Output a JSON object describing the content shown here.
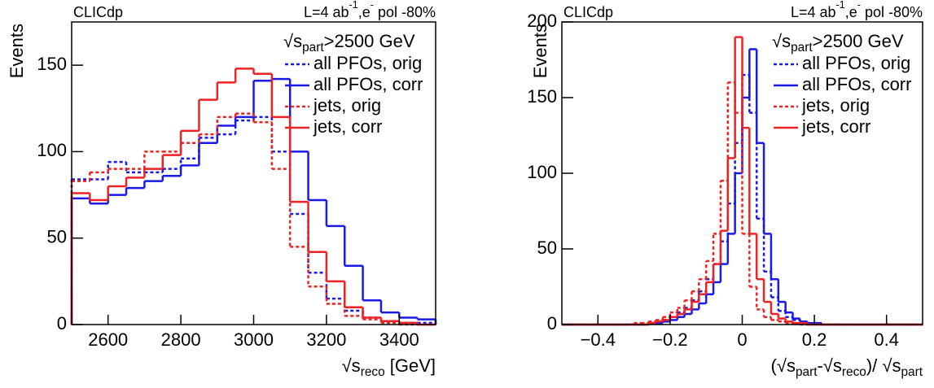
{
  "chart_data": [
    {
      "type": "histogram",
      "top_left_text": "CLICdp",
      "top_right_text": {
        "parts": [
          "L=4 ab",
          "-1",
          ",e",
          "-",
          " pol -80%"
        ],
        "script": "super"
      },
      "legend_title": {
        "parts": [
          "√s",
          "part",
          ">2500 GeV"
        ],
        "script": "sub"
      },
      "x_label": {
        "parts": [
          "√s",
          "reco",
          " [GeV]"
        ],
        "script": "sub"
      },
      "y_label": "Events",
      "legend": "top-right",
      "xlim": [
        2500,
        3500
      ],
      "xticks": [
        2600,
        2800,
        3000,
        3200,
        3400
      ],
      "ylim": [
        0,
        175
      ],
      "yticks": [
        0,
        50,
        100,
        150
      ],
      "bins": [
        2500,
        2550,
        2600,
        2650,
        2700,
        2750,
        2800,
        2850,
        2900,
        2950,
        3000,
        3050,
        3100,
        3150,
        3200,
        3250,
        3300,
        3350,
        3400,
        3450,
        3500
      ],
      "series": [
        {
          "name": "all PFOs, orig",
          "color": "#1a1ae6",
          "style": "dashed",
          "values": [
            84,
            84,
            94,
            88,
            88,
            90,
            96,
            108,
            110,
            118,
            120,
            100,
            64,
            30,
            15,
            8,
            4,
            2,
            1,
            1
          ]
        },
        {
          "name": "all PFOs, corr",
          "color": "#1a1ae6",
          "style": "solid",
          "values": [
            73,
            70,
            75,
            79,
            83,
            86,
            92,
            105,
            115,
            120,
            141,
            142,
            100,
            72,
            57,
            34,
            14,
            7,
            4,
            3
          ]
        },
        {
          "name": "jets, orig",
          "color": "#ee2222",
          "style": "dashed",
          "values": [
            83,
            88,
            90,
            90,
            100,
            100,
            105,
            110,
            120,
            122,
            117,
            90,
            45,
            22,
            12,
            5,
            3,
            1,
            0,
            0
          ]
        },
        {
          "name": "jets, corr",
          "color": "#ee2222",
          "style": "solid",
          "values": [
            76,
            72,
            80,
            85,
            90,
            98,
            112,
            130,
            140,
            148,
            145,
            120,
            71,
            42,
            25,
            10,
            4,
            2,
            1,
            0
          ]
        }
      ]
    },
    {
      "type": "histogram",
      "top_left_text": "CLICdp",
      "top_right_text": {
        "parts": [
          "L=4 ab",
          "-1",
          ",e",
          "-",
          " pol -80%"
        ],
        "script": "super"
      },
      "legend_title": {
        "parts": [
          "√s",
          "part",
          ">2500 GeV"
        ],
        "script": "sub"
      },
      "x_label": {
        "parts": [
          "(√s",
          "part",
          "-√s",
          "reco",
          ")/ √s",
          "part"
        ],
        "script": "sub"
      },
      "y_label": "Events",
      "legend": "top-right",
      "xlim": [
        -0.5,
        0.5
      ],
      "xticks": [
        {
          "value": -0.4,
          "label": "−0.4"
        },
        {
          "value": -0.2,
          "label": "−0.2"
        },
        0,
        0.2,
        0.4
      ],
      "ylim": [
        0,
        200
      ],
      "yticks": [
        0,
        50,
        100,
        150,
        200
      ],
      "bins": [
        -0.5,
        -0.48,
        -0.46,
        -0.44,
        -0.42,
        -0.4,
        -0.38,
        -0.36,
        -0.34,
        -0.32,
        -0.3,
        -0.28,
        -0.26,
        -0.24,
        -0.22,
        -0.2,
        -0.18,
        -0.16,
        -0.14,
        -0.12,
        -0.1,
        -0.08,
        -0.06,
        -0.04,
        -0.02,
        0,
        0.02,
        0.04,
        0.06,
        0.08,
        0.1,
        0.12,
        0.14,
        0.16,
        0.18,
        0.2,
        0.22,
        0.24,
        0.26,
        0.28,
        0.3,
        0.32,
        0.34,
        0.36,
        0.38,
        0.4,
        0.42,
        0.44,
        0.46,
        0.48,
        0.5
      ],
      "series": [
        {
          "name": "all PFOs, orig",
          "color": "#1a1ae6",
          "style": "dashed",
          "values": [
            0,
            0,
            0,
            0,
            0,
            0,
            0,
            0,
            0,
            0,
            0,
            0,
            1,
            2,
            3,
            5,
            8,
            11,
            16,
            22,
            30,
            40,
            55,
            80,
            120,
            165,
            140,
            70,
            35,
            18,
            9,
            5,
            3,
            2,
            1,
            1,
            0,
            0,
            0,
            0,
            0,
            0,
            0,
            0,
            0,
            0,
            0,
            0,
            0,
            0
          ]
        },
        {
          "name": "all PFOs, corr",
          "color": "#1a1ae6",
          "style": "solid",
          "values": [
            0,
            0,
            0,
            0,
            0,
            0,
            0,
            0,
            0,
            0,
            0,
            0,
            1,
            1,
            2,
            3,
            5,
            7,
            10,
            14,
            20,
            28,
            40,
            60,
            100,
            150,
            182,
            120,
            60,
            30,
            15,
            8,
            4,
            2,
            1,
            1,
            0,
            0,
            0,
            0,
            0,
            0,
            0,
            0,
            0,
            0,
            0,
            0,
            0,
            0
          ]
        },
        {
          "name": "jets, orig",
          "color": "#ee2222",
          "style": "dashed",
          "values": [
            0,
            0,
            0,
            0,
            0,
            0,
            0,
            0,
            0,
            0,
            1,
            1,
            2,
            3,
            5,
            8,
            11,
            16,
            22,
            30,
            42,
            60,
            95,
            160,
            140,
            60,
            25,
            10,
            5,
            3,
            2,
            1,
            1,
            0,
            0,
            0,
            0,
            0,
            0,
            0,
            0,
            0,
            0,
            0,
            0,
            0,
            0,
            0,
            0,
            0
          ]
        },
        {
          "name": "jets, corr",
          "color": "#ee2222",
          "style": "solid",
          "values": [
            0,
            0,
            0,
            0,
            0,
            0,
            0,
            0,
            0,
            0,
            0,
            0,
            1,
            2,
            3,
            5,
            7,
            10,
            15,
            20,
            28,
            40,
            62,
            110,
            190,
            130,
            60,
            30,
            15,
            7,
            4,
            2,
            1,
            1,
            0,
            0,
            0,
            0,
            0,
            0,
            0,
            0,
            0,
            0,
            0,
            0,
            0,
            0,
            0,
            0
          ]
        }
      ]
    }
  ]
}
